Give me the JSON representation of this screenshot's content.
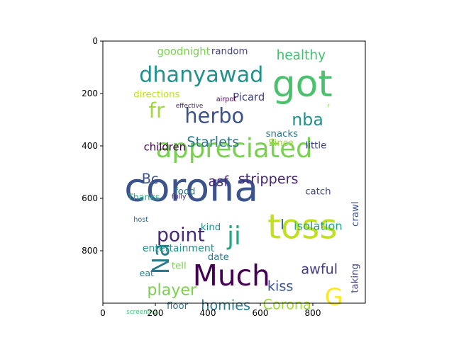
{
  "chart_data": {
    "type": "wordcloud",
    "xlim": [
      0,
      1000
    ],
    "ylim": [
      1000,
      0
    ],
    "xticks": [
      0,
      200,
      400,
      600,
      800
    ],
    "yticks": [
      0,
      200,
      400,
      600,
      800
    ],
    "background": "#ffffff",
    "words": [
      {
        "text": "corona",
        "x": 337,
        "y": 560,
        "size": 150,
        "color": "#3b528b"
      },
      {
        "text": "toss",
        "x": 760,
        "y": 710,
        "size": 130,
        "color": "#c2df23"
      },
      {
        "text": "got",
        "x": 760,
        "y": 165,
        "size": 140,
        "color": "#4ac16d"
      },
      {
        "text": "appreciated",
        "x": 500,
        "y": 410,
        "size": 100,
        "color": "#7ad151"
      },
      {
        "text": "Much",
        "x": 490,
        "y": 895,
        "size": 110,
        "color": "#440154"
      },
      {
        "text": "dhanyawad",
        "x": 375,
        "y": 130,
        "size": 82,
        "color": "#21918c"
      },
      {
        "text": "herbo",
        "x": 425,
        "y": 285,
        "size": 78,
        "color": "#3b528b"
      },
      {
        "text": "fr",
        "x": 205,
        "y": 265,
        "size": 80,
        "color": "#a0da39"
      },
      {
        "text": "ji",
        "x": 500,
        "y": 745,
        "size": 96,
        "color": "#22a884"
      },
      {
        "text": "point",
        "x": 297,
        "y": 740,
        "size": 72,
        "color": "#482878"
      },
      {
        "text": "Na",
        "x": 222,
        "y": 830,
        "size": 88,
        "color": "#2a788e",
        "rotate": -90
      },
      {
        "text": "nba",
        "x": 780,
        "y": 300,
        "size": 64,
        "color": "#21918c"
      },
      {
        "text": "player",
        "x": 263,
        "y": 950,
        "size": 60,
        "color": "#7ad151"
      },
      {
        "text": "G",
        "x": 880,
        "y": 975,
        "size": 90,
        "color": "#fde725"
      },
      {
        "text": "strippers",
        "x": 630,
        "y": 525,
        "size": 52,
        "color": "#482878"
      },
      {
        "text": "Starlets",
        "x": 420,
        "y": 385,
        "size": 52,
        "color": "#2a788e"
      },
      {
        "text": "awful",
        "x": 825,
        "y": 870,
        "size": 52,
        "color": "#443983"
      },
      {
        "text": "healthy",
        "x": 755,
        "y": 55,
        "size": 50,
        "color": "#44bf70"
      },
      {
        "text": "kiss",
        "x": 676,
        "y": 935,
        "size": 52,
        "color": "#3b528b"
      },
      {
        "text": "homies",
        "x": 468,
        "y": 1008,
        "size": 52,
        "color": "#2a788e"
      },
      {
        "text": "Corona",
        "x": 702,
        "y": 1005,
        "size": 52,
        "color": "#a0da39"
      },
      {
        "text": "asf",
        "x": 440,
        "y": 535,
        "size": 52,
        "color": "#482878"
      },
      {
        "text": "Bc",
        "x": 180,
        "y": 525,
        "size": 52,
        "color": "#3b528b"
      },
      {
        "text": "I",
        "x": 684,
        "y": 700,
        "size": 52,
        "color": "#31688e"
      },
      {
        "text": "isolation",
        "x": 820,
        "y": 705,
        "size": 44,
        "color": "#22a884"
      },
      {
        "text": "children",
        "x": 236,
        "y": 405,
        "size": 40,
        "color": "#440154"
      },
      {
        "text": "goodnight",
        "x": 308,
        "y": 40,
        "size": 40,
        "color": "#7ad151"
      },
      {
        "text": "random",
        "x": 483,
        "y": 40,
        "size": 36,
        "color": "#414487"
      },
      {
        "text": "Picard",
        "x": 556,
        "y": 215,
        "size": 40,
        "color": "#414487"
      },
      {
        "text": "directions",
        "x": 205,
        "y": 205,
        "size": 36,
        "color": "#c2df23"
      },
      {
        "text": "snacks",
        "x": 682,
        "y": 355,
        "size": 36,
        "color": "#2a788e"
      },
      {
        "text": "Since",
        "x": 679,
        "y": 390,
        "size": 36,
        "color": "#a0da39"
      },
      {
        "text": "little",
        "x": 812,
        "y": 400,
        "size": 36,
        "color": "#414487"
      },
      {
        "text": "entertainment",
        "x": 288,
        "y": 792,
        "size": 38,
        "color": "#21918c"
      },
      {
        "text": "date",
        "x": 440,
        "y": 825,
        "size": 36,
        "color": "#2a788e"
      },
      {
        "text": "tell",
        "x": 290,
        "y": 860,
        "size": 36,
        "color": "#7ad151"
      },
      {
        "text": "food",
        "x": 313,
        "y": 575,
        "size": 36,
        "color": "#2a788e"
      },
      {
        "text": "catch",
        "x": 820,
        "y": 575,
        "size": 36,
        "color": "#414487"
      },
      {
        "text": "Thanks",
        "x": 156,
        "y": 595,
        "size": 34,
        "color": "#22a884"
      },
      {
        "text": "crawl",
        "x": 964,
        "y": 660,
        "size": 36,
        "color": "#3b528b",
        "rotate": -90
      },
      {
        "text": "taking",
        "x": 962,
        "y": 905,
        "size": 36,
        "color": "#414487",
        "rotate": -90
      },
      {
        "text": "kind",
        "x": 411,
        "y": 712,
        "size": 36,
        "color": "#21918c"
      },
      {
        "text": "eat",
        "x": 167,
        "y": 885,
        "size": 34,
        "color": "#2a788e"
      },
      {
        "text": "floor",
        "x": 284,
        "y": 1012,
        "size": 36,
        "color": "#2a788e"
      },
      {
        "text": "fully",
        "x": 290,
        "y": 595,
        "size": 26,
        "color": "#482878"
      },
      {
        "text": "host",
        "x": 145,
        "y": 683,
        "size": 26,
        "color": "#31688e"
      },
      {
        "text": "effective",
        "x": 330,
        "y": 248,
        "size": 24,
        "color": "#482878"
      },
      {
        "text": "airpot",
        "x": 470,
        "y": 223,
        "size": 26,
        "color": "#440154"
      },
      {
        "text": "screening",
        "x": 148,
        "y": 1035,
        "size": 24,
        "color": "#44bf70"
      },
      {
        "text": "r",
        "x": 860,
        "y": 245,
        "size": 22,
        "color": "#7ad151"
      }
    ]
  }
}
